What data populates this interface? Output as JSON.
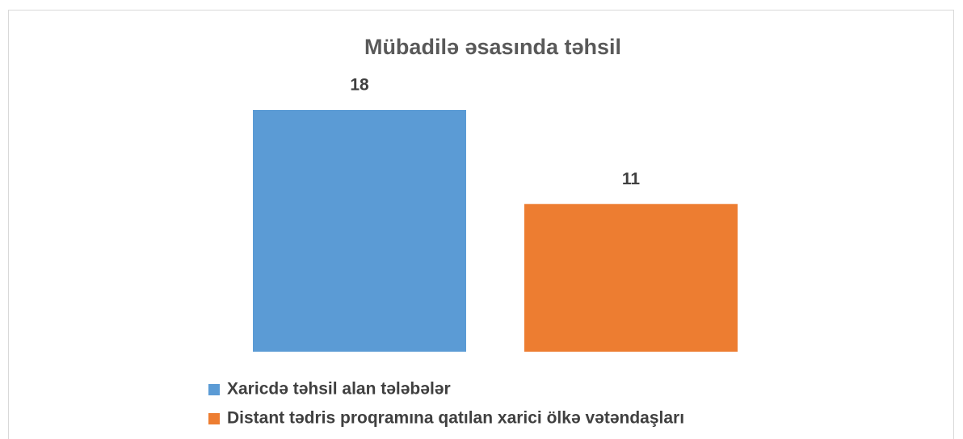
{
  "chart_data": {
    "type": "bar",
    "title": "Mübadilə əsasında təhsil",
    "categories": [
      null
    ],
    "series": [
      {
        "name": "Xaricdə təhsil alan tələbələr",
        "color": "#5b9bd5",
        "values": [
          18
        ]
      },
      {
        "name": "Distant tədris proqramına qatılan xarici ölkə vətəndaşları",
        "color": "#ed7d31",
        "values": [
          11
        ]
      }
    ],
    "legend": "bottom"
  }
}
